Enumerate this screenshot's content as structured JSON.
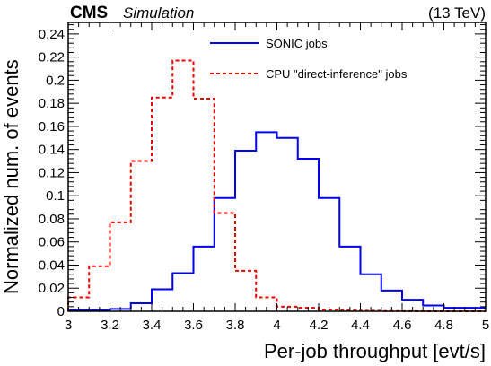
{
  "header": {
    "experiment": "CMS",
    "status": "Simulation",
    "energy": "(13 TeV)"
  },
  "chart_data": {
    "type": "line",
    "xlabel": "Per-job throughput [evt/s]",
    "ylabel": "Normalized num. of events",
    "xlim": [
      3,
      5
    ],
    "ylim": [
      0,
      0.25
    ],
    "bin_edges": [
      3.0,
      3.1,
      3.2,
      3.3,
      3.4,
      3.5,
      3.6,
      3.7,
      3.8,
      3.9,
      4.0,
      4.1,
      4.2,
      4.3,
      4.4,
      4.5,
      4.6,
      4.7,
      4.8,
      4.9,
      5.0
    ],
    "x_ticks": [
      "3",
      "3.2",
      "3.4",
      "3.6",
      "3.8",
      "4",
      "4.2",
      "4.4",
      "4.6",
      "4.8",
      "5"
    ],
    "y_ticks": [
      "0",
      "0.02",
      "0.04",
      "0.06",
      "0.08",
      "0.1",
      "0.12",
      "0.14",
      "0.16",
      "0.18",
      "0.2",
      "0.22",
      "0.24"
    ],
    "legend_position": "top-right",
    "series": [
      {
        "name": "SONIC jobs",
        "color": "#0000ee",
        "style": "solid",
        "values": [
          0.001,
          0.001,
          0.002,
          0.007,
          0.019,
          0.033,
          0.056,
          0.098,
          0.139,
          0.155,
          0.15,
          0.132,
          0.098,
          0.056,
          0.032,
          0.018,
          0.01,
          0.005,
          0.003,
          0.003
        ]
      },
      {
        "name": "CPU \"direct-inference\" jobs",
        "color": "#ee0000",
        "style": "dashed",
        "values": [
          0.012,
          0.039,
          0.077,
          0.13,
          0.185,
          0.217,
          0.184,
          0.085,
          0.035,
          0.012,
          0.004,
          0.003,
          0.0015,
          0.001,
          0.0005,
          0.0002,
          0.0001,
          0.0,
          0.0,
          0.0
        ]
      }
    ]
  }
}
